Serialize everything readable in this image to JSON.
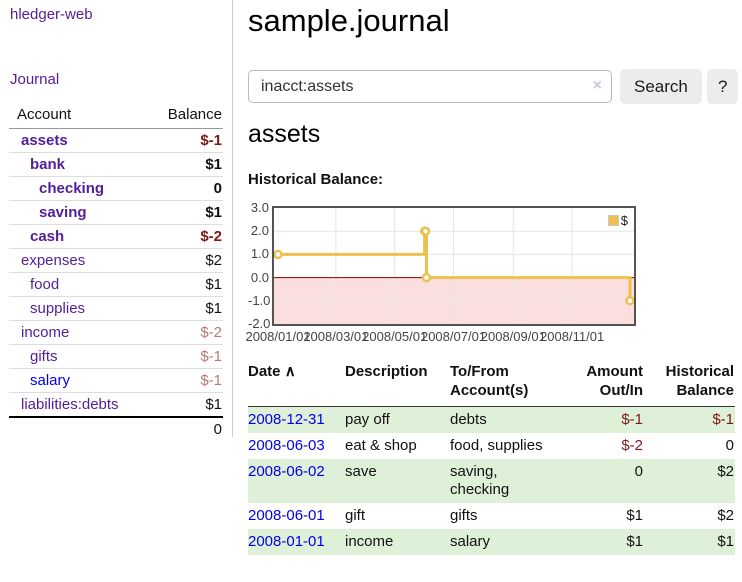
{
  "app": {
    "title": "hledger-web"
  },
  "colors": {
    "link_purple": "#521e9a",
    "link_blue": "#0000ee",
    "negative_strong": "#7e1818",
    "negative_muted": "#b97878",
    "row_green": "#dff0d8",
    "chart_line": "#ecc14f",
    "chart_negative_region": "#fbdede",
    "chart_zero_line": "#8b0000"
  },
  "sidebar": {
    "journal_link": "Journal",
    "account_header": "Account",
    "balance_header": "Balance",
    "rows": [
      {
        "account": "assets",
        "balance": "$-1",
        "depth": 1
      },
      {
        "account": "bank",
        "balance": "$1",
        "depth": 2
      },
      {
        "account": "checking",
        "balance": "0",
        "depth": 3
      },
      {
        "account": "saving",
        "balance": "$1",
        "depth": 3
      },
      {
        "account": "cash",
        "balance": "$-2",
        "depth": 2
      },
      {
        "account": "expenses",
        "balance": "$2",
        "depth": 1
      },
      {
        "account": "food",
        "balance": "$1",
        "depth": 2
      },
      {
        "account": "supplies",
        "balance": "$1",
        "depth": 2
      },
      {
        "account": "income",
        "balance": "$-2",
        "depth": 1
      },
      {
        "account": "gifts",
        "balance": "$-1",
        "depth": 2
      },
      {
        "account": "salary",
        "balance": "$-1",
        "depth": 2
      },
      {
        "account": "liabilities:debts",
        "balance": "$1",
        "depth": 1
      }
    ],
    "total": "0"
  },
  "main": {
    "title": "sample.journal",
    "search": {
      "value": "inacct:assets",
      "clear_icon": "×",
      "button_label": "Search",
      "help_label": "?"
    },
    "account_heading": "assets",
    "section_label": "Historical Balance:"
  },
  "chart_data": {
    "type": "line",
    "title": "Historical Balance",
    "step": true,
    "ylim": [
      -2,
      3
    ],
    "x_range_days": [
      0,
      365
    ],
    "legend_position": "top-right",
    "series": [
      {
        "name": "$",
        "color": "#ecc14f",
        "points": [
          {
            "date": "2008-01-01",
            "day": 0,
            "value": 1
          },
          {
            "date": "2008-06-01",
            "day": 152,
            "value": 2
          },
          {
            "date": "2008-06-02",
            "day": 153,
            "value": 2
          },
          {
            "date": "2008-06-03",
            "day": 154,
            "value": 0
          },
          {
            "date": "2008-12-31",
            "day": 365,
            "value": -1
          }
        ]
      }
    ],
    "y_ticks": [
      {
        "label": "3.0",
        "value": 3
      },
      {
        "label": "2.0",
        "value": 2
      },
      {
        "label": "1.0",
        "value": 1
      },
      {
        "label": "0.0",
        "value": 0
      },
      {
        "label": "-1.0",
        "value": -1
      },
      {
        "label": "-2.0",
        "value": -2
      }
    ],
    "x_ticks": [
      {
        "label": "2008/01/01",
        "day": 0
      },
      {
        "label": "2008/03/01",
        "day": 60
      },
      {
        "label": "2008/05/01",
        "day": 121
      },
      {
        "label": "2008/07/01",
        "day": 182
      },
      {
        "label": "2008/09/01",
        "day": 244
      },
      {
        "label": "2008/11/01",
        "day": 305
      }
    ]
  },
  "transactions": {
    "headers": {
      "date": "Date",
      "sort_icon": "∧",
      "description": "Description",
      "accounts": "To/From Account(s)",
      "amount": "Amount Out/In",
      "balance": "Historical Balance"
    },
    "rows": [
      {
        "date": "2008-12-31",
        "description": "pay off",
        "accounts": "debts",
        "amount": "$-1",
        "balance": "$-1"
      },
      {
        "date": "2008-06-03",
        "description": "eat & shop",
        "accounts": "food, supplies",
        "amount": "$-2",
        "balance": "0"
      },
      {
        "date": "2008-06-02",
        "description": "save",
        "accounts": "saving, checking",
        "amount": "0",
        "balance": "$2"
      },
      {
        "date": "2008-06-01",
        "description": "gift",
        "accounts": "gifts",
        "amount": "$1",
        "balance": "$2"
      },
      {
        "date": "2008-01-01",
        "description": "income",
        "accounts": "salary",
        "amount": "$1",
        "balance": "$1"
      }
    ]
  }
}
